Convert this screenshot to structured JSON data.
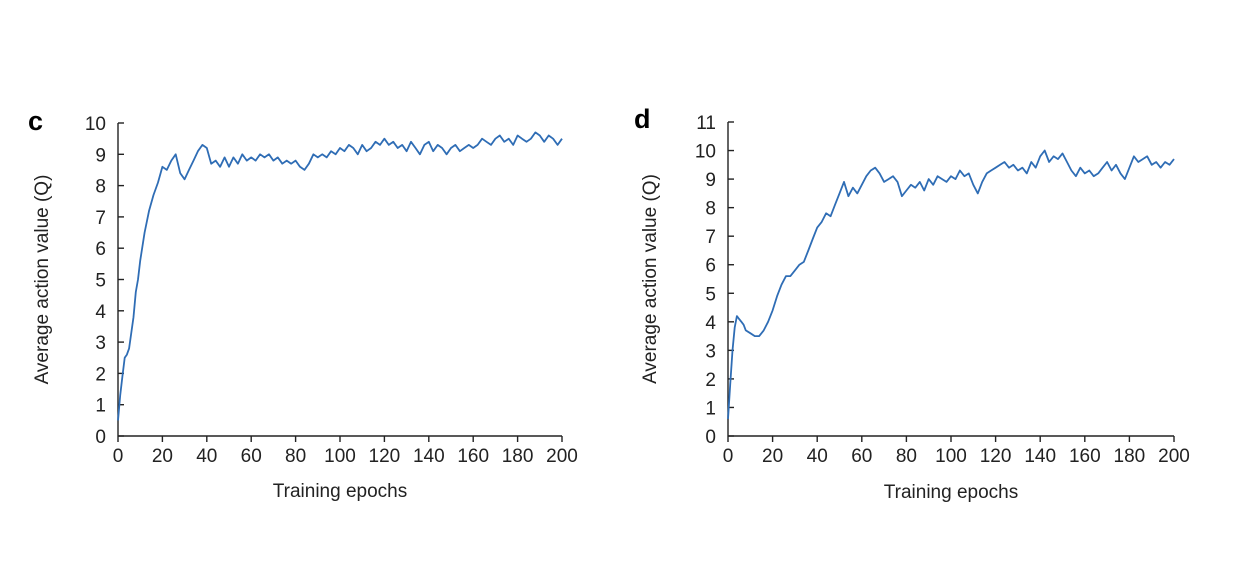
{
  "colors": {
    "series": "#2f6db5",
    "axis": "#222222"
  },
  "chart_data": [
    {
      "type": "line",
      "panel": "c",
      "xlabel": "Training epochs",
      "ylabel": "Average action value (Q)",
      "xlim": [
        0,
        200
      ],
      "ylim": [
        0,
        10
      ],
      "xticks": [
        0,
        20,
        40,
        60,
        80,
        100,
        120,
        140,
        160,
        180,
        200
      ],
      "yticks": [
        0,
        1,
        2,
        3,
        4,
        5,
        6,
        7,
        8,
        9,
        10
      ],
      "grid": false,
      "series": [
        {
          "x": [
            0,
            1,
            2,
            3,
            4,
            5,
            6,
            7,
            8,
            9,
            10,
            12,
            14,
            16,
            18,
            20,
            22,
            24,
            26,
            28,
            30,
            32,
            34,
            36,
            38,
            40,
            42,
            44,
            46,
            48,
            50,
            52,
            54,
            56,
            58,
            60,
            62,
            64,
            66,
            68,
            70,
            72,
            74,
            76,
            78,
            80,
            82,
            84,
            86,
            88,
            90,
            92,
            94,
            96,
            98,
            100,
            102,
            104,
            106,
            108,
            110,
            112,
            114,
            116,
            118,
            120,
            122,
            124,
            126,
            128,
            130,
            132,
            134,
            136,
            138,
            140,
            142,
            144,
            146,
            148,
            150,
            152,
            154,
            156,
            158,
            160,
            162,
            164,
            166,
            168,
            170,
            172,
            174,
            176,
            178,
            180,
            182,
            184,
            186,
            188,
            190,
            192,
            194,
            196,
            198,
            200
          ],
          "y": [
            0.5,
            1.3,
            1.9,
            2.5,
            2.6,
            2.8,
            3.3,
            3.8,
            4.6,
            5.0,
            5.6,
            6.5,
            7.2,
            7.7,
            8.1,
            8.6,
            8.5,
            8.8,
            9.0,
            8.4,
            8.2,
            8.5,
            8.8,
            9.1,
            9.3,
            9.2,
            8.7,
            8.8,
            8.6,
            8.9,
            8.6,
            8.9,
            8.7,
            9.0,
            8.8,
            8.9,
            8.8,
            9.0,
            8.9,
            9.0,
            8.8,
            8.9,
            8.7,
            8.8,
            8.7,
            8.8,
            8.6,
            8.5,
            8.7,
            9.0,
            8.9,
            9.0,
            8.9,
            9.1,
            9.0,
            9.2,
            9.1,
            9.3,
            9.2,
            9.0,
            9.3,
            9.1,
            9.2,
            9.4,
            9.3,
            9.5,
            9.3,
            9.4,
            9.2,
            9.3,
            9.1,
            9.4,
            9.2,
            9.0,
            9.3,
            9.4,
            9.1,
            9.3,
            9.2,
            9.0,
            9.2,
            9.3,
            9.1,
            9.2,
            9.3,
            9.2,
            9.3,
            9.5,
            9.4,
            9.3,
            9.5,
            9.6,
            9.4,
            9.5,
            9.3,
            9.6,
            9.5,
            9.4,
            9.5,
            9.7,
            9.6,
            9.4,
            9.6,
            9.5,
            9.3,
            9.5
          ]
        }
      ]
    },
    {
      "type": "line",
      "panel": "d",
      "xlabel": "Training epochs",
      "ylabel": "Average action value (Q)",
      "xlim": [
        0,
        200
      ],
      "ylim": [
        0,
        11
      ],
      "xticks": [
        0,
        20,
        40,
        60,
        80,
        100,
        120,
        140,
        160,
        180,
        200
      ],
      "yticks": [
        0,
        1,
        2,
        3,
        4,
        5,
        6,
        7,
        8,
        9,
        10,
        11
      ],
      "grid": false,
      "series": [
        {
          "x": [
            0,
            1,
            2,
            3,
            4,
            5,
            6,
            7,
            8,
            10,
            12,
            14,
            16,
            18,
            20,
            22,
            24,
            26,
            28,
            30,
            32,
            34,
            36,
            38,
            40,
            42,
            44,
            46,
            48,
            50,
            52,
            54,
            56,
            58,
            60,
            62,
            64,
            66,
            68,
            70,
            72,
            74,
            76,
            78,
            80,
            82,
            84,
            86,
            88,
            90,
            92,
            94,
            96,
            98,
            100,
            102,
            104,
            106,
            108,
            110,
            112,
            114,
            116,
            118,
            120,
            122,
            124,
            126,
            128,
            130,
            132,
            134,
            136,
            138,
            140,
            142,
            144,
            146,
            148,
            150,
            152,
            154,
            156,
            158,
            160,
            162,
            164,
            166,
            168,
            170,
            172,
            174,
            176,
            178,
            180,
            182,
            184,
            186,
            188,
            190,
            192,
            194,
            196,
            198,
            200
          ],
          "y": [
            0.6,
            1.8,
            3.0,
            3.8,
            4.2,
            4.1,
            4.0,
            3.9,
            3.7,
            3.6,
            3.5,
            3.5,
            3.7,
            4.0,
            4.4,
            4.9,
            5.3,
            5.6,
            5.6,
            5.8,
            6.0,
            6.1,
            6.5,
            6.9,
            7.3,
            7.5,
            7.8,
            7.7,
            8.1,
            8.5,
            8.9,
            8.4,
            8.7,
            8.5,
            8.8,
            9.1,
            9.3,
            9.4,
            9.2,
            8.9,
            9.0,
            9.1,
            8.9,
            8.4,
            8.6,
            8.8,
            8.7,
            8.9,
            8.6,
            9.0,
            8.8,
            9.1,
            9.0,
            8.9,
            9.1,
            9.0,
            9.3,
            9.1,
            9.2,
            8.8,
            8.5,
            8.9,
            9.2,
            9.3,
            9.4,
            9.5,
            9.6,
            9.4,
            9.5,
            9.3,
            9.4,
            9.2,
            9.6,
            9.4,
            9.8,
            10.0,
            9.6,
            9.8,
            9.7,
            9.9,
            9.6,
            9.3,
            9.1,
            9.4,
            9.2,
            9.3,
            9.1,
            9.2,
            9.4,
            9.6,
            9.3,
            9.5,
            9.2,
            9.0,
            9.4,
            9.8,
            9.6,
            9.7,
            9.8,
            9.5,
            9.6,
            9.4,
            9.6,
            9.5,
            9.7
          ]
        }
      ]
    }
  ]
}
